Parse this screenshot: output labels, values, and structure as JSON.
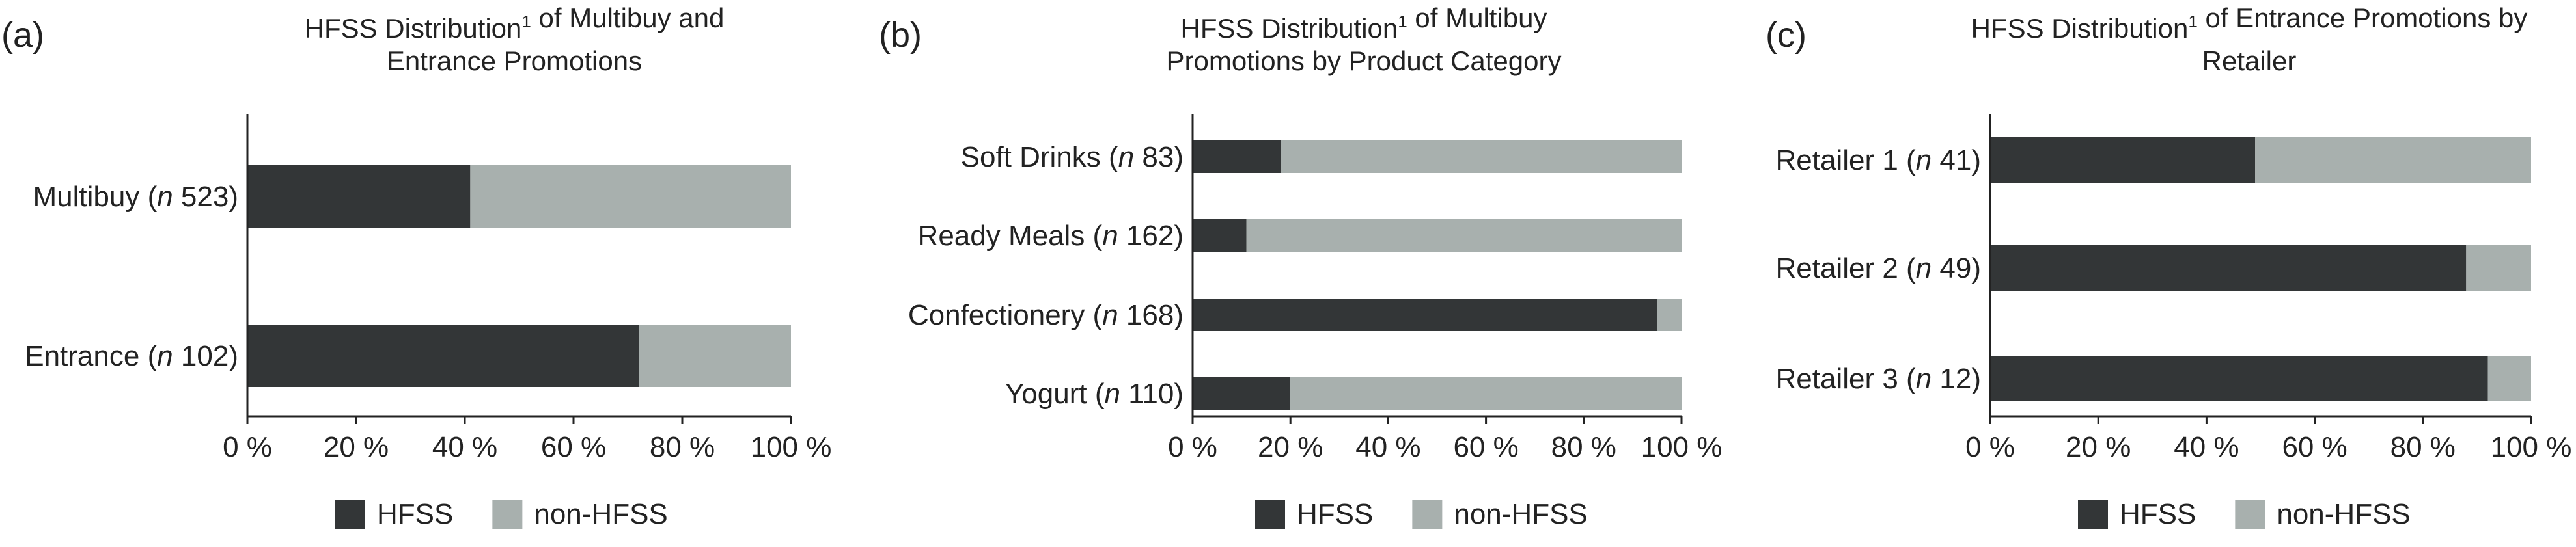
{
  "colors": {
    "hfss": "#333637",
    "non_hfss": "#a8b0ae"
  },
  "chart_data": [
    {
      "type": "bar",
      "orientation": "horizontal",
      "stacked": true,
      "panel_letter": "(a)",
      "title_lines": [
        "HFSS Distribution¹ of Multibuy and",
        "Entrance Promotions"
      ],
      "categories": [
        "Multibuy (n 523)",
        "Entrance (n 102)"
      ],
      "category_parts": [
        {
          "pre": "Multibuy (",
          "n": "n",
          "post": " 523)"
        },
        {
          "pre": "Entrance (",
          "n": "n",
          "post": " 102)"
        }
      ],
      "series": [
        {
          "name": "HFSS",
          "values": [
            41,
            72
          ]
        },
        {
          "name": "non-HFSS",
          "values": [
            59,
            28
          ]
        }
      ],
      "xlim": [
        0,
        100
      ],
      "xticks": [
        "0 %",
        "20 %",
        "40 %",
        "60 %",
        "80 %",
        "100 %"
      ],
      "legend": [
        "HFSS",
        "non-HFSS"
      ],
      "legend_position": "bottom"
    },
    {
      "type": "bar",
      "orientation": "horizontal",
      "stacked": true,
      "panel_letter": "(b)",
      "title_lines": [
        "HFSS Distribution¹ of Multibuy",
        "Promotions by Product Category"
      ],
      "categories": [
        "Soft Drinks (n 83)",
        "Ready Meals (n 162)",
        "Confectionery (n 168)",
        "Yogurt (n 110)"
      ],
      "category_parts": [
        {
          "pre": "Soft Drinks (",
          "n": "n",
          "post": " 83)"
        },
        {
          "pre": "Ready Meals (",
          "n": "n",
          "post": " 162)"
        },
        {
          "pre": "Confectionery (",
          "n": "n",
          "post": " 168)"
        },
        {
          "pre": "Yogurt (",
          "n": "n",
          "post": " 110)"
        }
      ],
      "series": [
        {
          "name": "HFSS",
          "values": [
            18,
            11,
            95,
            20
          ]
        },
        {
          "name": "non-HFSS",
          "values": [
            82,
            89,
            5,
            80
          ]
        }
      ],
      "xlim": [
        0,
        100
      ],
      "xticks": [
        "0 %",
        "20 %",
        "40 %",
        "60 %",
        "80 %",
        "100 %"
      ],
      "legend": [
        "HFSS",
        "non-HFSS"
      ],
      "legend_position": "bottom"
    },
    {
      "type": "bar",
      "orientation": "horizontal",
      "stacked": true,
      "panel_letter": "(c)",
      "title_lines": [
        "HFSS Distribution¹ of Entrance Promotions by",
        "Retailer"
      ],
      "categories": [
        "Retailer 1 (n 41)",
        "Retailer 2 (n 49)",
        "Retailer 3 (n 12)"
      ],
      "category_parts": [
        {
          "pre": "Retailer 1 (",
          "n": "n",
          "post": " 41)"
        },
        {
          "pre": "Retailer 2 (",
          "n": "n",
          "post": " 49)"
        },
        {
          "pre": "Retailer 3 (",
          "n": "n",
          "post": " 12)"
        }
      ],
      "series": [
        {
          "name": "HFSS",
          "values": [
            49,
            88,
            92
          ]
        },
        {
          "name": "non-HFSS",
          "values": [
            51,
            12,
            8
          ]
        }
      ],
      "xlim": [
        0,
        100
      ],
      "xticks": [
        "0 %",
        "20 %",
        "40 %",
        "60 %",
        "80 %",
        "100 %"
      ],
      "legend": [
        "HFSS",
        "non-HFSS"
      ],
      "legend_position": "bottom"
    }
  ]
}
